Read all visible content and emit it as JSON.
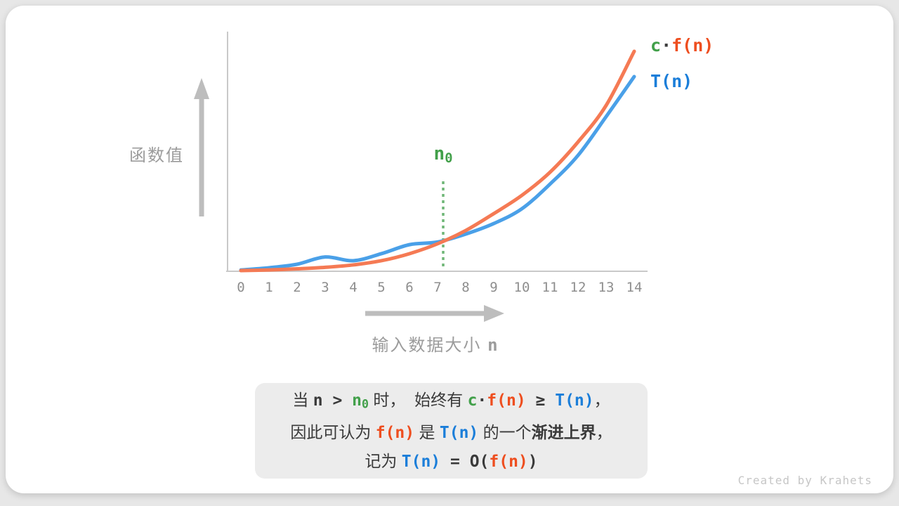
{
  "colors": {
    "page_bg": "#e7e7e7",
    "card_bg": "#ffffff",
    "axis_gray": "#c9c9c9",
    "arrow_gray": "#bdbdbd",
    "tick_gray": "#8e8e8e",
    "label_gray": "#9c9c9c",
    "curve_orange": "#f57a54",
    "curve_blue": "#4aa0e8",
    "text_orange": "#ee4e1f",
    "text_blue": "#1b7ed9",
    "text_green": "#42a04a",
    "dotted_green": "#6fb677",
    "text_dark": "#3a3a3a",
    "box_bg": "#ececec",
    "footer_gray": "#c6c6c6"
  },
  "chart_data": {
    "type": "line",
    "title": "",
    "xlabel": "输入数据大小 n",
    "ylabel": "函数值",
    "xlim": [
      0,
      14
    ],
    "ylim": [
      0,
      100
    ],
    "grid": false,
    "legend_position": "top-right",
    "x": [
      0,
      1,
      2,
      3,
      4,
      5,
      6,
      7,
      8,
      9,
      10,
      11,
      12,
      13,
      14
    ],
    "x_ticks": [
      "0",
      "1",
      "2",
      "3",
      "4",
      "5",
      "6",
      "7",
      "8",
      "9",
      "10",
      "11",
      "12",
      "13",
      "14"
    ],
    "series": [
      {
        "name": "c·f(n)",
        "color_key": "curve_orange",
        "values": [
          0.3,
          0.6,
          1.1,
          1.8,
          2.9,
          4.8,
          8.0,
          12.5,
          18.5,
          26.2,
          34.5,
          45.0,
          58.8,
          75.4,
          100.0
        ]
      },
      {
        "name": "T(n)",
        "color_key": "curve_blue",
        "values": [
          0.6,
          1.6,
          3.2,
          6.5,
          4.8,
          8.0,
          12.1,
          13.3,
          16.9,
          21.7,
          28.4,
          39.6,
          52.7,
          70.3,
          88.5
        ]
      }
    ],
    "n0": 7.2,
    "n0_marker": "vertical dotted line at n0 from axis up to label"
  },
  "axis_labels": {
    "y": "函数值",
    "x_text": "输入数据大小 ",
    "x_var": "n"
  },
  "n0_label": {
    "base": "n",
    "sub": "0"
  },
  "legend": {
    "entries": [
      {
        "id": "cfn",
        "segments": [
          {
            "text": "c",
            "style": "green"
          },
          {
            "text": "·",
            "style": "mono"
          },
          {
            "text": "f(n)",
            "style": "orange"
          }
        ]
      },
      {
        "id": "tn",
        "segments": [
          {
            "text": "T(n)",
            "style": "blue"
          }
        ]
      }
    ]
  },
  "note_box": {
    "lines": [
      {
        "text": "当 n > n₀ 时， 始终有 c·f(n) ≥ T(n)，",
        "segments": [
          {
            "text": "当 ",
            "style": "plain"
          },
          {
            "text": "n",
            "style": "mono"
          },
          {
            "text": " > ",
            "style": "mono"
          },
          {
            "text": "n",
            "sub": "0",
            "style": "green"
          },
          {
            "text": " 时，  ",
            "style": "plain"
          },
          {
            "text": "始终有 ",
            "style": "plain"
          },
          {
            "text": "c",
            "style": "green"
          },
          {
            "text": "·",
            "style": "mono"
          },
          {
            "text": "f(n)",
            "style": "orange"
          },
          {
            "text": " ≥ ",
            "style": "mono"
          },
          {
            "text": "T(n)",
            "style": "blue"
          },
          {
            "text": "，",
            "style": "plain"
          }
        ]
      },
      {
        "text": "因此可认为 f(n) 是 T(n) 的一个渐进上界，",
        "segments": [
          {
            "text": "因此可认为 ",
            "style": "plain"
          },
          {
            "text": "f(n)",
            "style": "orange"
          },
          {
            "text": " 是 ",
            "style": "plain"
          },
          {
            "text": "T(n)",
            "style": "blue"
          },
          {
            "text": " 的一个",
            "style": "plain"
          },
          {
            "text": "渐进上界",
            "style": "plain-bold"
          },
          {
            "text": "，",
            "style": "plain"
          }
        ]
      },
      {
        "text": "记为 T(n) = O(f(n))",
        "segments": [
          {
            "text": "记为 ",
            "style": "plain"
          },
          {
            "text": "T(n)",
            "style": "blue"
          },
          {
            "text": " = ",
            "style": "mono"
          },
          {
            "text": "O(",
            "style": "mono"
          },
          {
            "text": "f(n)",
            "style": "orange"
          },
          {
            "text": ")",
            "style": "mono"
          }
        ]
      }
    ]
  },
  "footer": {
    "credit": "Created by Krahets"
  }
}
